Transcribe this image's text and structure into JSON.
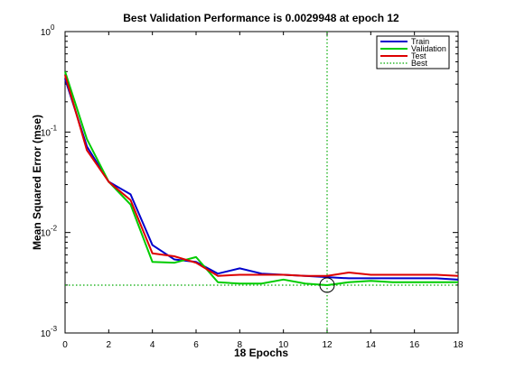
{
  "chart_data": {
    "type": "line",
    "title": "Best Validation Performance is 0.0029948 at epoch 12",
    "xlabel": "18 Epochs",
    "ylabel": "Mean Squared Error  (mse)",
    "xlim": [
      0,
      18
    ],
    "ylim": [
      0.001,
      1
    ],
    "yscale": "log",
    "x_ticks": [
      "0",
      "2",
      "4",
      "6",
      "8",
      "10",
      "12",
      "14",
      "16",
      "18"
    ],
    "y_ticks": [
      {
        "base": "10",
        "exp": "0"
      },
      {
        "base": "10",
        "exp": "-1"
      },
      {
        "base": "10",
        "exp": "-2"
      },
      {
        "base": "10",
        "exp": "-3"
      }
    ],
    "grid": false,
    "legend_position": "top-right",
    "x": [
      0,
      1,
      2,
      3,
      4,
      5,
      6,
      7,
      8,
      9,
      10,
      11,
      12,
      13,
      14,
      15,
      16,
      17,
      18
    ],
    "series": [
      {
        "name": "Train",
        "color": "#0000cc",
        "values": [
          0.34,
          0.072,
          0.032,
          0.024,
          0.0075,
          0.0054,
          0.0051,
          0.0039,
          0.0044,
          0.0039,
          0.0038,
          0.0037,
          0.0036,
          0.0035,
          0.0035,
          0.0035,
          0.0035,
          0.0035,
          0.0034
        ]
      },
      {
        "name": "Validation",
        "color": "#00cc00",
        "values": [
          0.4,
          0.085,
          0.032,
          0.019,
          0.0051,
          0.005,
          0.0057,
          0.0032,
          0.0031,
          0.0031,
          0.0034,
          0.0031,
          0.0029948,
          0.0032,
          0.0033,
          0.0032,
          0.0032,
          0.0032,
          0.0032
        ]
      },
      {
        "name": "Test",
        "color": "#dd0000",
        "values": [
          0.37,
          0.066,
          0.032,
          0.021,
          0.0062,
          0.0058,
          0.005,
          0.0037,
          0.0038,
          0.0038,
          0.0038,
          0.0037,
          0.0037,
          0.004,
          0.0038,
          0.0038,
          0.0038,
          0.0038,
          0.0037
        ]
      }
    ],
    "best": {
      "name": "Best",
      "color": "#00aa00",
      "epoch": 12,
      "value": 0.0029948
    }
  }
}
